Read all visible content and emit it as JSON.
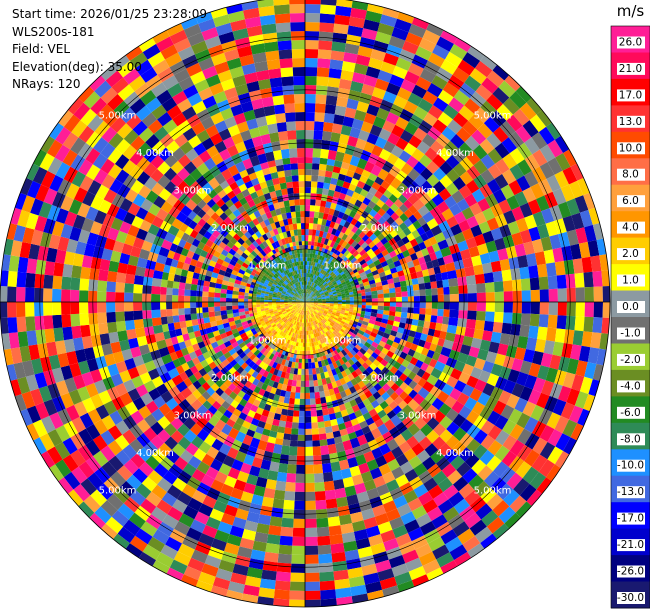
{
  "header": {
    "start_time": "Start time: 2026/01/25 23:28:09",
    "instrument": "WLS200s-181",
    "field": "Field: VEL",
    "elevation": "Elevation(deg): 35.00",
    "nrays": "NRays: 120"
  },
  "chart_data": {
    "type": "heatmap",
    "projection": "polar-ppi",
    "field": "VEL",
    "units": "m/s",
    "n_rays": 120,
    "elevation_deg": 35.0,
    "range_rings_km": [
      1.0,
      2.0,
      3.0,
      4.0,
      5.0
    ],
    "range_ring_labels": [
      "1.00km",
      "2.00km",
      "3.00km",
      "4.00km",
      "5.00km"
    ],
    "max_range_km": 5.75,
    "colorbar": {
      "unit_label": "m/s",
      "ticks": [
        "26.0",
        "21.0",
        "17.0",
        "13.0",
        "10.0",
        "8.0",
        "6.0",
        "4.0",
        "2.0",
        "1.0",
        "0.0",
        "-1.0",
        "-2.0",
        "-4.0",
        "-6.0",
        "-8.0",
        "-10.0",
        "-13.0",
        "-17.0",
        "-21.0",
        "-26.0",
        "-30.0"
      ],
      "colors": [
        "#ff1e96",
        "#ff0a5a",
        "#ff0000",
        "#ff3232",
        "#ff4b00",
        "#ff6e46",
        "#ffa03c",
        "#ff9600",
        "#ffcd00",
        "#ffff00",
        "#8c9aa2",
        "#707070",
        "#9acd32",
        "#6b8e23",
        "#228b22",
        "#2e8b57",
        "#1e90ff",
        "#4169e1",
        "#0000ff",
        "#0000cd",
        "#000080",
        "#191970"
      ]
    }
  }
}
